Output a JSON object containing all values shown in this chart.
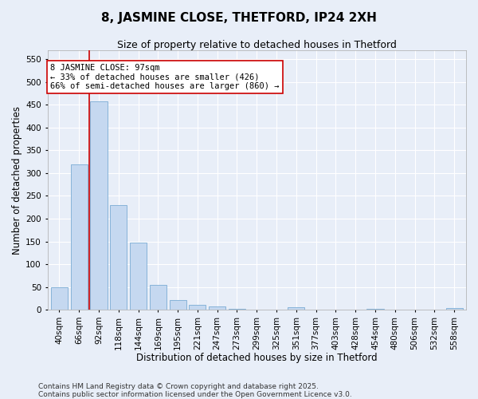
{
  "title": "8, JASMINE CLOSE, THETFORD, IP24 2XH",
  "subtitle": "Size of property relative to detached houses in Thetford",
  "xlabel": "Distribution of detached houses by size in Thetford",
  "ylabel": "Number of detached properties",
  "categories": [
    "40sqm",
    "66sqm",
    "92sqm",
    "118sqm",
    "144sqm",
    "169sqm",
    "195sqm",
    "221sqm",
    "247sqm",
    "273sqm",
    "299sqm",
    "325sqm",
    "351sqm",
    "377sqm",
    "403sqm",
    "428sqm",
    "454sqm",
    "480sqm",
    "506sqm",
    "532sqm",
    "558sqm"
  ],
  "values": [
    50,
    320,
    457,
    230,
    148,
    55,
    22,
    10,
    8,
    1,
    0,
    0,
    6,
    0,
    0,
    0,
    2,
    0,
    0,
    0,
    3
  ],
  "bar_color": "#c5d8f0",
  "bar_edge_color": "#7aacd4",
  "vline_x": 1.5,
  "vline_color": "#cc0000",
  "annotation_text": "8 JASMINE CLOSE: 97sqm\n← 33% of detached houses are smaller (426)\n66% of semi-detached houses are larger (860) →",
  "annotation_box_color": "#ffffff",
  "annotation_box_edge": "#cc0000",
  "ylim": [
    0,
    570
  ],
  "yticks": [
    0,
    50,
    100,
    150,
    200,
    250,
    300,
    350,
    400,
    450,
    500,
    550
  ],
  "background_color": "#e8eef8",
  "grid_color": "#ffffff",
  "footer": "Contains HM Land Registry data © Crown copyright and database right 2025.\nContains public sector information licensed under the Open Government Licence v3.0.",
  "title_fontsize": 11,
  "subtitle_fontsize": 9,
  "xlabel_fontsize": 8.5,
  "ylabel_fontsize": 8.5,
  "tick_fontsize": 7.5,
  "footer_fontsize": 6.5,
  "ann_fontsize": 7.5
}
